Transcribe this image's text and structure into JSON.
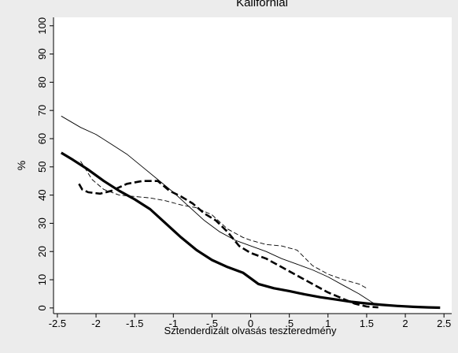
{
  "chart_data": {
    "type": "line",
    "title": "Kaliforniai",
    "xlabel": "Sztenderdizált olvasás teszteredmény",
    "ylabel": "%",
    "xlim": [
      -2.55,
      2.6
    ],
    "ylim": [
      -2,
      103
    ],
    "grid": false,
    "legend": "none",
    "x_ticks": [
      -2.5,
      -2,
      -1.5,
      -1,
      -0.5,
      0,
      0.5,
      1,
      1.5,
      2,
      2.5
    ],
    "x_tick_labels": [
      "-2.5",
      "-2",
      "-1.5",
      "-1",
      "-.5",
      "0",
      ".5",
      "1",
      "1.5",
      "2",
      "2.5"
    ],
    "y_ticks": [
      0,
      10,
      20,
      30,
      40,
      50,
      60,
      70,
      80,
      90,
      100
    ],
    "y_tick_labels": [
      "0",
      "10",
      "20",
      "30",
      "40",
      "50",
      "60",
      "70",
      "80",
      "90",
      "100"
    ],
    "series": [
      {
        "style": "thick-solid",
        "x": [
          -2.45,
          -2.3,
          -2.1,
          -1.9,
          -1.7,
          -1.5,
          -1.3,
          -1.1,
          -0.9,
          -0.7,
          -0.5,
          -0.3,
          -0.1,
          0.0,
          0.1,
          0.3,
          0.5,
          0.7,
          0.9,
          1.1,
          1.3,
          1.5,
          1.7,
          1.9,
          2.1,
          2.3,
          2.45
        ],
        "y": [
          55,
          52.5,
          49,
          45,
          41.5,
          38.5,
          35,
          30,
          25,
          20.5,
          17,
          14.5,
          12.5,
          10.5,
          8.5,
          7,
          6,
          4.8,
          3.8,
          3,
          2.2,
          1.6,
          1.1,
          0.7,
          0.4,
          0.2,
          0.1
        ]
      },
      {
        "style": "thin-solid",
        "x": [
          -2.45,
          -2.2,
          -2.0,
          -1.8,
          -1.6,
          -1.4,
          -1.2,
          -1.0,
          -0.8,
          -0.6,
          -0.4,
          -0.2,
          0.0,
          0.2,
          0.4,
          0.6,
          0.8,
          1.0,
          1.2,
          1.4,
          1.6
        ],
        "y": [
          68,
          64,
          61.5,
          58,
          54.5,
          50,
          45.5,
          41,
          36,
          31,
          27,
          24,
          22,
          20,
          17.5,
          15.5,
          13.5,
          11,
          8,
          5,
          1.5
        ]
      },
      {
        "style": "thick-dash",
        "x": [
          -2.22,
          -2.18,
          -2.1,
          -1.95,
          -1.8,
          -1.6,
          -1.4,
          -1.2,
          -1.05,
          -0.9,
          -0.75,
          -0.6,
          -0.45,
          -0.3,
          -0.15,
          0.0,
          0.2,
          0.4,
          0.6,
          0.8,
          1.0,
          1.2,
          1.35,
          1.5,
          1.65
        ],
        "y": [
          44,
          42,
          41,
          40.5,
          41.5,
          44,
          45,
          45,
          41.5,
          39.5,
          37,
          33.5,
          31,
          27,
          22,
          19.5,
          17.5,
          14.5,
          11.5,
          8.5,
          5.5,
          3.2,
          1.5,
          0.5,
          0.2
        ]
      },
      {
        "style": "thin-dash",
        "x": [
          -2.2,
          -2.05,
          -1.9,
          -1.7,
          -1.5,
          -1.3,
          -1.1,
          -0.9,
          -0.7,
          -0.5,
          -0.3,
          -0.1,
          0.0,
          0.2,
          0.4,
          0.6,
          0.8,
          1.0,
          1.2,
          1.4,
          1.5
        ],
        "y": [
          52,
          45.5,
          42,
          40,
          39.5,
          39,
          38,
          36.5,
          35.5,
          33,
          28,
          25,
          24,
          22.5,
          22,
          20.5,
          15,
          12,
          10,
          8.5,
          7
        ]
      }
    ]
  }
}
